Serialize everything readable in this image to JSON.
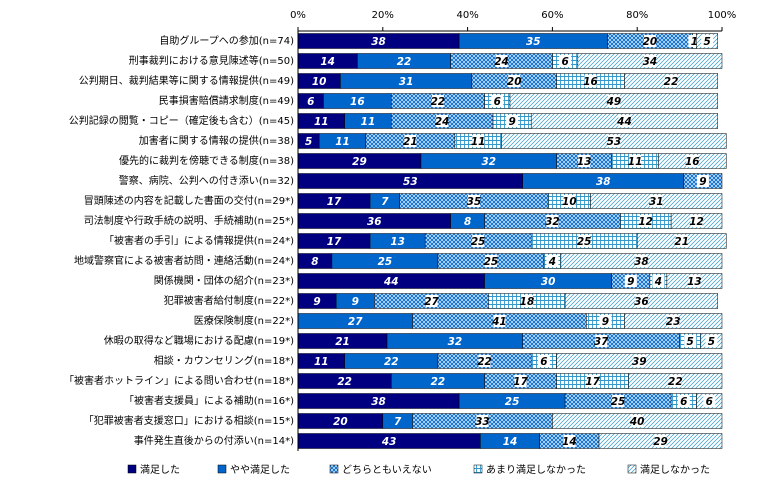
{
  "chart_data": {
    "type": "stacked-bar-horizontal",
    "categories": [
      "自助グループへの参加(n=74)",
      "刑事裁判における意見陳述等(n=50)",
      "公判期日、裁判結果等に関する情報提供(n=49)",
      "民事損害賠償請求制度(n=49)",
      "公判記録の閲覧・コピー（確定後も含む）(n=45)",
      "加害者に関する情報の提供(n=38)",
      "優先的に裁判を傍聴できる制度(n=38)",
      "警察、病院、公判への付き添い(n=32)",
      "冒頭陳述の内容を記載した書面の交付(n=29*)",
      "司法制度や行政手続の説明、手続補助(n=25*)",
      "「被害者の手引」による情報提供(n=24*)",
      "地域警察官による被害者訪問・連絡活動(n=24*)",
      "関係機関・団体の紹介(n=23*)",
      "犯罪被害者給付制度(n=22*)",
      "医療保険制度(n=22*)",
      "休暇の取得など職場における配慮(n=19*)",
      "相談・カウンセリング(n=18*)",
      "「被害者ホットライン」による問い合わせ(n=18*)",
      "「被害者支援員」による補助(n=16*)",
      "「犯罪被害者支援窓口」における相談(n=15*)",
      "事件発生直後からの付添い(n=14*)"
    ],
    "series": [
      {
        "name": "満足した",
        "color": "#000080",
        "pattern": "solid",
        "values": [
          38,
          14,
          10,
          6,
          11,
          5,
          29,
          53,
          17,
          36,
          17,
          8,
          44,
          9,
          null,
          21,
          11,
          22,
          38,
          20,
          43
        ]
      },
      {
        "name": "やや満足した",
        "color": "#0066cc",
        "pattern": "solid",
        "values": [
          35,
          22,
          31,
          16,
          11,
          11,
          32,
          38,
          7,
          8,
          13,
          25,
          30,
          9,
          27,
          32,
          22,
          22,
          25,
          7,
          14
        ]
      },
      {
        "name": "どちらともいえない",
        "color": "#0066cc",
        "pattern": "crosshatch",
        "values": [
          20,
          24,
          20,
          22,
          24,
          21,
          13,
          9,
          35,
          32,
          25,
          25,
          9,
          27,
          41,
          37,
          22,
          17,
          25,
          33,
          14
        ]
      },
      {
        "name": "あまり満足しなかった",
        "color": "#3399cc",
        "pattern": "grid",
        "values": [
          1,
          6,
          16,
          6,
          9,
          11,
          11,
          null,
          10,
          12,
          25,
          4,
          4,
          18,
          9,
          5,
          6,
          17,
          6,
          null,
          null
        ]
      },
      {
        "name": "満足しなかった",
        "color": "#3399cc",
        "pattern": "diagonal",
        "values": [
          5,
          34,
          22,
          49,
          44,
          53,
          16,
          null,
          31,
          12,
          21,
          38,
          13,
          36,
          23,
          5,
          39,
          22,
          6,
          40,
          29
        ]
      }
    ],
    "xlim": [
      0,
      100
    ],
    "xticks": [
      {
        "value": 0,
        "label": "0%"
      },
      {
        "value": 20,
        "label": "20%"
      },
      {
        "value": 40,
        "label": "40%"
      },
      {
        "value": 60,
        "label": "60%"
      },
      {
        "value": 80,
        "label": "80%"
      },
      {
        "value": 100,
        "label": "100%"
      }
    ],
    "grid": false,
    "legend": "bottom"
  }
}
